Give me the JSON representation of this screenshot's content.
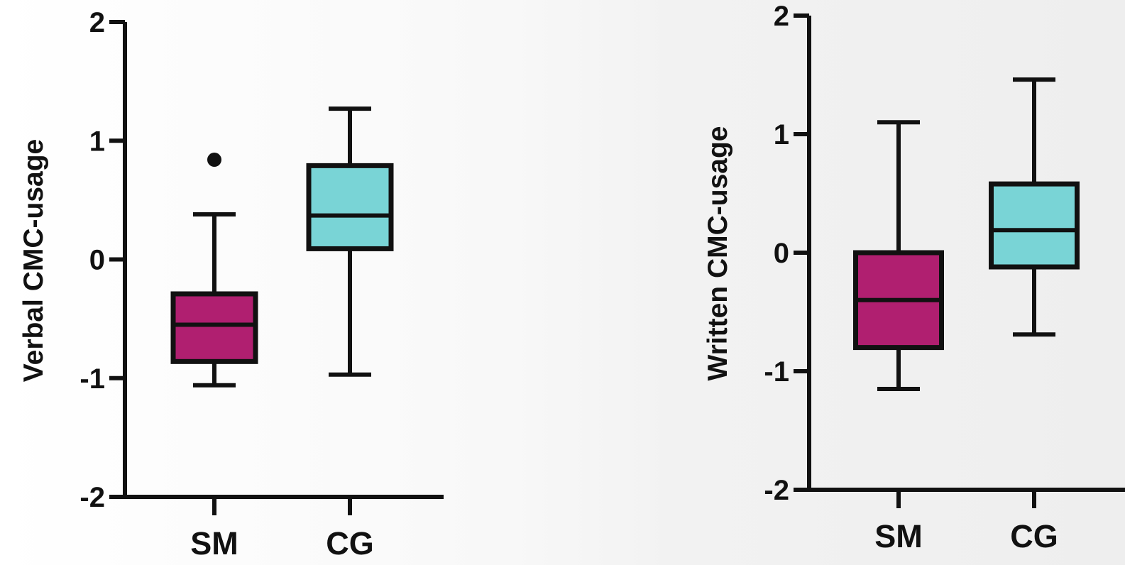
{
  "chart_data": [
    {
      "type": "box",
      "title": "",
      "xlabel": "",
      "ylabel": "Verbal CMC-usage",
      "ylim": [
        -2,
        2
      ],
      "yticks": [
        "2",
        "1",
        "0",
        "-1",
        "-2"
      ],
      "ytick_values": [
        2,
        1,
        0,
        -1,
        -2
      ],
      "categories": [
        "SM",
        "CG"
      ],
      "boxes": [
        {
          "category": "SM",
          "color": "#b01f70",
          "whisker_low": -1.06,
          "q1": -0.86,
          "median": -0.55,
          "q3": -0.29,
          "whisker_high": 0.38,
          "outliers": [
            0.84
          ]
        },
        {
          "category": "CG",
          "color": "#79d4d6",
          "whisker_low": -0.97,
          "q1": 0.09,
          "median": 0.37,
          "q3": 0.79,
          "whisker_high": 1.27,
          "outliers": []
        }
      ]
    },
    {
      "type": "box",
      "title": "",
      "xlabel": "",
      "ylabel": "Written CMC-usage",
      "ylim": [
        -2,
        2
      ],
      "yticks": [
        "2",
        "1",
        "0",
        "-1",
        "-2"
      ],
      "ytick_values": [
        2,
        1,
        0,
        -1,
        -2
      ],
      "categories": [
        "SM",
        "CG"
      ],
      "boxes": [
        {
          "category": "SM",
          "color": "#b01f70",
          "whisker_low": -1.15,
          "q1": -0.8,
          "median": -0.4,
          "q3": 0.0,
          "whisker_high": 1.1,
          "outliers": []
        },
        {
          "category": "CG",
          "color": "#79d4d6",
          "whisker_low": -0.69,
          "q1": -0.12,
          "median": 0.19,
          "q3": 0.58,
          "whisker_high": 1.46,
          "outliers": []
        }
      ]
    }
  ]
}
